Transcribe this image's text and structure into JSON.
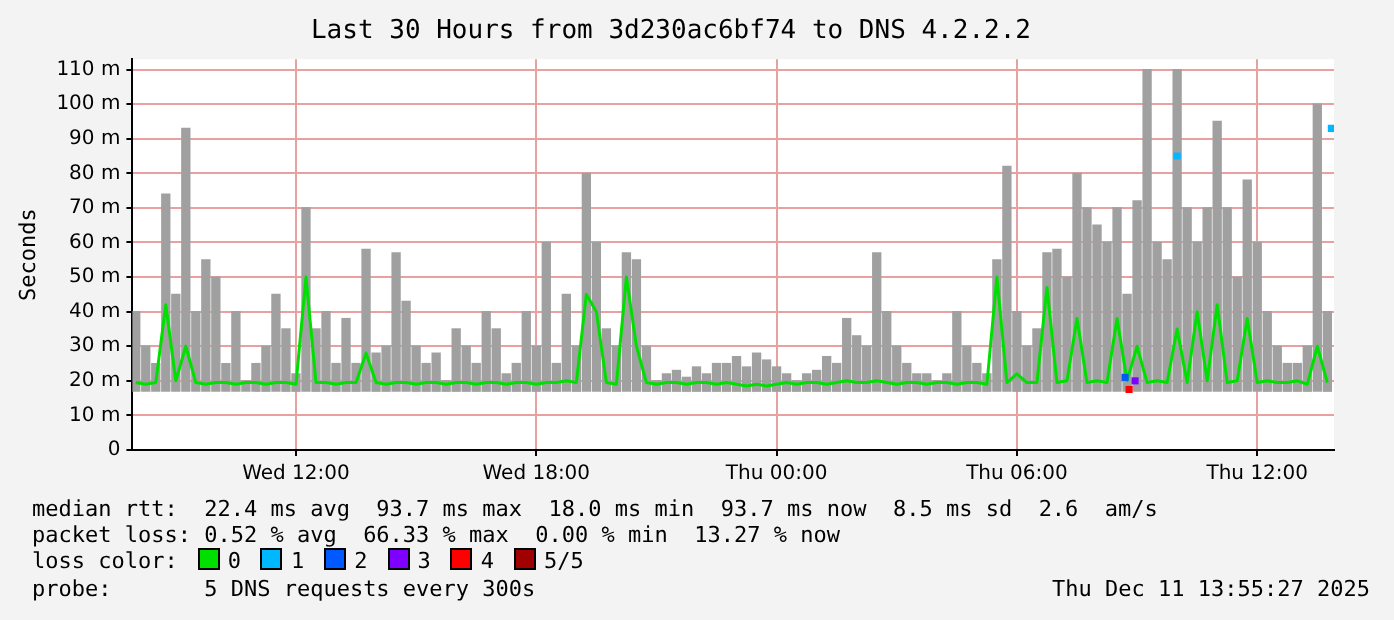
{
  "chart_data": {
    "type": "line",
    "title": "Last 30 Hours from 3d230ac6bf74 to DNS 4.2.2.2",
    "ylabel": "Seconds",
    "x": [
      "2025-12-10T08:00",
      "2025-12-10T08:15",
      "2025-12-10T08:30",
      "2025-12-10T08:45",
      "2025-12-10T09:00",
      "2025-12-10T09:15",
      "2025-12-10T09:30",
      "2025-12-10T09:45",
      "2025-12-10T10:00",
      "2025-12-10T10:15",
      "2025-12-10T10:30",
      "2025-12-10T10:45",
      "2025-12-10T11:00",
      "2025-12-10T11:15",
      "2025-12-10T11:30",
      "2025-12-10T11:45",
      "2025-12-10T12:00",
      "2025-12-10T12:15",
      "2025-12-10T12:30",
      "2025-12-10T12:45",
      "2025-12-10T13:00",
      "2025-12-10T13:15",
      "2025-12-10T13:30",
      "2025-12-10T13:45",
      "2025-12-10T14:00",
      "2025-12-10T14:15",
      "2025-12-10T14:30",
      "2025-12-10T14:45",
      "2025-12-10T15:00",
      "2025-12-10T15:15",
      "2025-12-10T15:30",
      "2025-12-10T15:45",
      "2025-12-10T16:00",
      "2025-12-10T16:15",
      "2025-12-10T16:30",
      "2025-12-10T16:45",
      "2025-12-10T17:00",
      "2025-12-10T17:15",
      "2025-12-10T17:30",
      "2025-12-10T17:45",
      "2025-12-10T18:00",
      "2025-12-10T18:15",
      "2025-12-10T18:30",
      "2025-12-10T18:45",
      "2025-12-10T19:00",
      "2025-12-10T19:15",
      "2025-12-10T19:30",
      "2025-12-10T19:45",
      "2025-12-10T20:00",
      "2025-12-10T20:15",
      "2025-12-10T20:30",
      "2025-12-10T20:45",
      "2025-12-10T21:00",
      "2025-12-10T21:15",
      "2025-12-10T21:30",
      "2025-12-10T21:45",
      "2025-12-10T22:00",
      "2025-12-10T22:15",
      "2025-12-10T22:30",
      "2025-12-10T22:45",
      "2025-12-10T23:00",
      "2025-12-10T23:15",
      "2025-12-10T23:30",
      "2025-12-10T23:45",
      "2025-12-11T00:00",
      "2025-12-11T00:15",
      "2025-12-11T00:30",
      "2025-12-11T00:45",
      "2025-12-11T01:00",
      "2025-12-11T01:15",
      "2025-12-11T01:30",
      "2025-12-11T01:45",
      "2025-12-11T02:00",
      "2025-12-11T02:15",
      "2025-12-11T02:30",
      "2025-12-11T02:45",
      "2025-12-11T03:00",
      "2025-12-11T03:15",
      "2025-12-11T03:30",
      "2025-12-11T03:45",
      "2025-12-11T04:00",
      "2025-12-11T04:15",
      "2025-12-11T04:30",
      "2025-12-11T04:45",
      "2025-12-11T05:00",
      "2025-12-11T05:15",
      "2025-12-11T05:30",
      "2025-12-11T05:45",
      "2025-12-11T06:00",
      "2025-12-11T06:15",
      "2025-12-11T06:30",
      "2025-12-11T06:45",
      "2025-12-11T07:00",
      "2025-12-11T07:15",
      "2025-12-11T07:30",
      "2025-12-11T07:45",
      "2025-12-11T08:00",
      "2025-12-11T08:15",
      "2025-12-11T08:30",
      "2025-12-11T08:45",
      "2025-12-11T09:00",
      "2025-12-11T09:15",
      "2025-12-11T09:30",
      "2025-12-11T09:45",
      "2025-12-11T10:00",
      "2025-12-11T10:15",
      "2025-12-11T10:30",
      "2025-12-11T10:45",
      "2025-12-11T11:00",
      "2025-12-11T11:15",
      "2025-12-11T11:30",
      "2025-12-11T11:45",
      "2025-12-11T12:00",
      "2025-12-11T12:15",
      "2025-12-11T12:30",
      "2025-12-11T12:45",
      "2025-12-11T13:00",
      "2025-12-11T13:15",
      "2025-12-11T13:30",
      "2025-12-11T13:45"
    ],
    "series": [
      {
        "type": "bar",
        "color": "#a0a0a0",
        "base": [
          17,
          17,
          17,
          17,
          17,
          17,
          17,
          17,
          17,
          17,
          17,
          17,
          17,
          17,
          17,
          17,
          17,
          17,
          17,
          17,
          17,
          17,
          17,
          17,
          17,
          17,
          17,
          17,
          17,
          17,
          17,
          17,
          17,
          17,
          17,
          17,
          17,
          17,
          17,
          17,
          17,
          17,
          17,
          17,
          17,
          17,
          17,
          17,
          17,
          17,
          17,
          17,
          17,
          17,
          17,
          17,
          17,
          17,
          17,
          17,
          17,
          17,
          17,
          17,
          17,
          17,
          17,
          17,
          17,
          17,
          17,
          17,
          17,
          17,
          17,
          17,
          17,
          17,
          17,
          17,
          17,
          17,
          17,
          17,
          17,
          17,
          17,
          17,
          17,
          17,
          17,
          17,
          17,
          17,
          17,
          17,
          17,
          17,
          17,
          17,
          17,
          17,
          17,
          17,
          17,
          17,
          17,
          17,
          17,
          17,
          17,
          17,
          17,
          17,
          17,
          17,
          17,
          17,
          17,
          17
        ],
        "values": [
          23,
          13,
          8,
          57,
          28,
          76,
          23,
          38,
          33,
          8,
          23,
          3,
          8,
          13,
          28,
          18,
          5,
          53,
          18,
          23,
          8,
          21,
          8,
          41,
          11,
          13,
          40,
          26,
          13,
          8,
          11,
          3,
          18,
          13,
          8,
          23,
          18,
          5,
          8,
          23,
          13,
          43,
          8,
          28,
          13,
          63,
          43,
          18,
          13,
          40,
          38,
          13,
          3,
          5,
          6,
          4,
          7,
          5,
          8,
          8,
          10,
          7,
          11,
          9,
          7,
          5,
          3,
          5,
          6,
          10,
          8,
          21,
          16,
          13,
          40,
          23,
          13,
          8,
          5,
          5,
          3,
          5,
          23,
          13,
          8,
          5,
          38,
          65,
          23,
          13,
          18,
          40,
          41,
          33,
          63,
          53,
          48,
          43,
          53,
          28,
          55,
          93,
          43,
          38,
          93,
          53,
          43,
          53,
          78,
          53,
          33,
          61,
          43,
          23,
          13,
          8,
          8,
          13,
          83,
          23
        ]
      },
      {
        "name": "0",
        "color": "#00e000",
        "values": [
          19.5,
          19,
          19.5,
          42,
          20,
          30,
          19.5,
          19,
          19.5,
          19.5,
          19,
          19.5,
          19.5,
          19,
          19.5,
          19.5,
          19,
          50,
          19.5,
          19.5,
          19,
          19.5,
          19.5,
          28,
          19.5,
          19,
          19.5,
          19.5,
          19,
          19.5,
          19.5,
          19,
          19.5,
          19.5,
          19,
          19.5,
          19.5,
          19,
          19.5,
          19.5,
          19,
          19.5,
          19.5,
          20,
          19.5,
          45,
          40,
          19.5,
          19,
          50,
          30,
          19.5,
          19,
          19.5,
          19.5,
          19,
          19.5,
          19.5,
          19,
          19.5,
          19,
          18.5,
          19,
          18.5,
          19,
          19.5,
          19,
          19.5,
          19.5,
          19,
          19.5,
          20,
          19.5,
          19.5,
          20,
          19.5,
          19,
          19.5,
          19.5,
          19,
          19.5,
          19.5,
          19,
          19.5,
          19.5,
          19,
          50,
          19.5,
          22,
          19.5,
          19.5,
          47,
          19.5,
          20,
          38,
          19.5,
          20,
          19.5,
          38,
          20,
          30,
          19.5,
          20,
          19.5,
          35,
          19.5,
          40,
          20,
          42,
          19.5,
          20,
          38,
          19.5,
          20,
          19.5,
          19.5,
          20,
          19,
          30,
          19.5
        ]
      },
      {
        "type": "scatter",
        "name": "1",
        "color": "#00b8ff",
        "marker": "square",
        "x": [
          "2025-12-11T10:00",
          "2025-12-11T13:51"
        ],
        "values": [
          85,
          93
        ]
      },
      {
        "type": "scatter",
        "name": "2",
        "color": "#0059ff",
        "marker": "square",
        "x": [
          "2025-12-11T08:42"
        ],
        "values": [
          21
        ]
      },
      {
        "type": "scatter",
        "name": "3",
        "color": "#7e00ff",
        "marker": "square",
        "x": [
          "2025-12-11T08:57"
        ],
        "values": [
          20
        ]
      },
      {
        "type": "scatter",
        "name": "4",
        "color": "#ff0000",
        "marker": "square",
        "x": [
          "2025-12-11T08:48"
        ],
        "values": [
          17.5
        ]
      },
      {
        "type": "scatter",
        "name": "5/5",
        "color": "#a00000",
        "marker": "square",
        "values": [
          null,
          null,
          null,
          null,
          null,
          null,
          null,
          null,
          null,
          null,
          null,
          null,
          null,
          null,
          null,
          null,
          null,
          null,
          null,
          null,
          null,
          null,
          null,
          null,
          null,
          null,
          null,
          null,
          null,
          null,
          null,
          null,
          null,
          null,
          null,
          null,
          null,
          null,
          null,
          null,
          null,
          null,
          null,
          null,
          null,
          null,
          null,
          null,
          null,
          null,
          null,
          null,
          null,
          null,
          null,
          null,
          null,
          null,
          null,
          null,
          null,
          null,
          null,
          null,
          null,
          null,
          null,
          null,
          null,
          null,
          null,
          null,
          null,
          null,
          null,
          null,
          null,
          null,
          null,
          null,
          null,
          null,
          null,
          null,
          null,
          null,
          null,
          null,
          null,
          null,
          null,
          null,
          null,
          null,
          null,
          null,
          null,
          null,
          null,
          null,
          null,
          null,
          null,
          null,
          null,
          null,
          null,
          null,
          null,
          null,
          null,
          null,
          null,
          null,
          null,
          null,
          null,
          null,
          null,
          null
        ]
      }
    ],
    "xlim": [
      "2025-12-10T07:55",
      "2025-12-11T13:55"
    ],
    "xticks": [
      {
        "value": "2025-12-10T12:00",
        "label": "Wed 12:00"
      },
      {
        "value": "2025-12-10T18:00",
        "label": "Wed 18:00"
      },
      {
        "value": "2025-12-11T00:00",
        "label": "Thu 00:00"
      },
      {
        "value": "2025-12-11T06:00",
        "label": "Thu 06:00"
      },
      {
        "value": "2025-12-11T12:00",
        "label": "Thu 12:00"
      }
    ],
    "ylim": [
      0,
      113
    ],
    "yticks": [
      0,
      {
        "value": 10,
        "label": "10 m"
      },
      {
        "value": 20,
        "label": "20 m"
      },
      {
        "value": 30,
        "label": "30 m"
      },
      {
        "value": 40,
        "label": "40 m"
      },
      {
        "value": 50,
        "label": "50 m"
      },
      {
        "value": 60,
        "label": "60 m"
      },
      {
        "value": 70,
        "label": "70 m"
      },
      {
        "value": 80,
        "label": "80 m"
      },
      {
        "value": 90,
        "label": "90 m"
      },
      {
        "value": 100,
        "label": "100 m"
      },
      {
        "value": 110,
        "label": "110 m"
      }
    ],
    "grid": true,
    "legend": "bottom",
    "legend_title": "loss color:",
    "annotations": [
      "median rtt:  22.4 ms avg  93.7 ms max  18.0 ms min  93.7 ms now  8.5 ms sd  2.6  am/s",
      "packet loss: 0.52 % avg  66.33 % max  0.00 % min  13.27 % now",
      "probe:       5 DNS requests every 300s",
      "Thu Dec 11 13:55:27 2025"
    ]
  }
}
